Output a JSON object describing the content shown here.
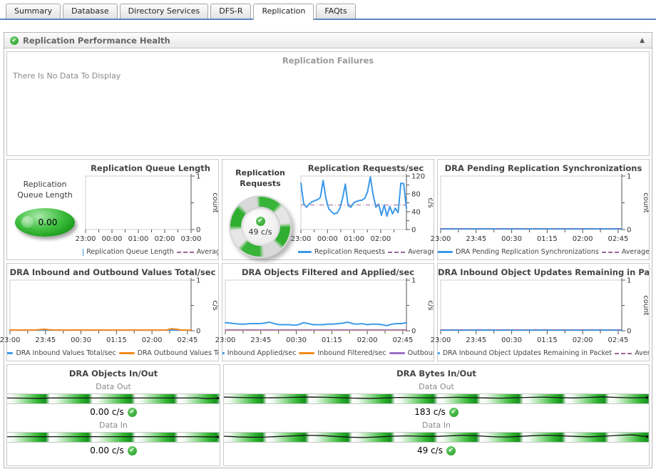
{
  "tabs": {
    "active": "Replication",
    "items": [
      "Summary",
      "Database",
      "Directory Services",
      "DFS-R",
      "Replication",
      "FAQts"
    ]
  },
  "section": {
    "title": "Replication Performance Health"
  },
  "glyphs": {
    "check": "✔",
    "collapse": "▲"
  },
  "colors": {
    "status_ok": "#2ca42c",
    "series_blue": "#3b99ea",
    "series_orange": "#f28a1f",
    "series_purple": "#9a6fc4",
    "average": "#996699",
    "tab_underline": "#5b86c2"
  },
  "no_data_panel": {
    "title": "Replication Failures",
    "message": "There Is No Data To Display"
  },
  "chart_data": [
    {
      "id": "replication-queue-length",
      "type": "line",
      "title": "Replication Queue Length",
      "xlabels": [
        "23:00",
        "00:00",
        "01:00",
        "02:00",
        "03:00"
      ],
      "xstep": 0.25,
      "ylim": [
        0,
        1
      ],
      "yticks": [
        0,
        1
      ],
      "ylabel": "count",
      "series": [],
      "legend": [
        {
          "swatch": "square",
          "color": "#3b99ea",
          "label": "Replication Queue Length"
        },
        {
          "swatch": "dash",
          "color": "#996699",
          "label": "Average"
        }
      ],
      "gauge": {
        "kind": "oval",
        "label": "Replication Queue Length",
        "value": "0.00"
      }
    },
    {
      "id": "replication-requests",
      "type": "line",
      "title": "Replication Requests/sec",
      "xlabels": [
        "23:00",
        "00:00",
        "01:00",
        "02:00"
      ],
      "xstep": 0.252,
      "ylim": [
        0,
        120
      ],
      "yticks": [
        0,
        40,
        80,
        120
      ],
      "ylabel": "c/s",
      "series": [
        {
          "name": "Replication Requests",
          "color": "#3b99ea",
          "width": 2,
          "values": [
            104,
            58,
            50,
            57,
            62,
            65,
            67,
            72,
            110,
            70,
            47,
            40,
            35,
            37,
            47,
            70,
            102,
            54,
            50,
            60,
            63,
            65,
            66,
            70,
            85,
            118,
            78,
            50,
            57,
            32,
            55,
            30,
            52,
            35,
            48,
            38,
            104,
            103,
            48
          ]
        }
      ],
      "average": 55,
      "legend": [
        {
          "swatch": "line",
          "color": "#3b99ea",
          "label": "Replication Requests"
        },
        {
          "swatch": "dash",
          "color": "#996699",
          "label": "Average"
        }
      ],
      "gauge": {
        "kind": "ring",
        "label": "Replication Requests",
        "value": "49 c/s"
      }
    },
    {
      "id": "dra-pending-sync",
      "type": "line",
      "title": "DRA Pending Replication Synchronizations",
      "xlabels": [
        "23:00",
        "23:45",
        "00:30",
        "01:15",
        "02:00",
        "02:45"
      ],
      "xstep": 0.196,
      "ylim": [
        0,
        1
      ],
      "yticks": [
        0,
        1
      ],
      "ylabel": "count",
      "series": [
        {
          "name": "DRA Pending Replication Synchronizations",
          "color": "#3b99ea",
          "width": 2,
          "values": [
            0.004,
            0.004,
            0.004,
            0.004,
            0.004,
            0.004,
            0.004,
            0.004
          ]
        }
      ],
      "average": 0,
      "legend": [
        {
          "swatch": "line",
          "color": "#3b99ea",
          "label": "DRA Pending Replication Synchronizations"
        },
        {
          "swatch": "dash",
          "color": "#996699",
          "label": "Average"
        }
      ]
    },
    {
      "id": "dra-values-total",
      "type": "line",
      "title": "DRA Inbound and Outbound Values Total/sec",
      "xlabels": [
        "23:00",
        "23:45",
        "00:30",
        "01:15",
        "02:00",
        "02:45"
      ],
      "xstep": 0.196,
      "ylim": [
        0,
        1
      ],
      "yticks": [
        0,
        1
      ],
      "ylabel": "c/s",
      "series": [
        {
          "name": "DRA Inbound Values Total/sec",
          "color": "#3b99ea",
          "width": 2,
          "values": [
            0.004,
            0.004,
            0.004,
            0.004,
            0.004,
            0.004,
            0.004,
            0.004,
            0.004,
            0.004
          ]
        },
        {
          "name": "DRA Outbound Values Total/sec",
          "color": "#f28a1f",
          "width": 2,
          "values": [
            0.005,
            0.005,
            0.005,
            0.005,
            0.005,
            0.008,
            0.022,
            0.03,
            0.02,
            0.008,
            0.005,
            0.005,
            0.005,
            0.005,
            0.005,
            0.005,
            0.005,
            0.005,
            0.005,
            0.005,
            0.005,
            0.005,
            0.005,
            0.005,
            0.005,
            0.005,
            0.005,
            0.005,
            0.005,
            0.005,
            0.005,
            0.005,
            0.008,
            0.04,
            0.03,
            0.008,
            0.005,
            0.005
          ]
        }
      ],
      "legend": [
        {
          "swatch": "line",
          "color": "#3b99ea",
          "label": "DRA Inbound Values Total/sec"
        },
        {
          "swatch": "line",
          "color": "#f28a1f",
          "label": "DRA Outbound Values Tota"
        }
      ]
    },
    {
      "id": "dra-filtered-applied",
      "type": "line",
      "title": "DRA Objects Filtered and Applied/sec",
      "xlabels": [
        "23:00",
        "23:45",
        "00:30",
        "01:15",
        "02:00",
        "02:45"
      ],
      "xstep": 0.196,
      "ylim": [
        0,
        1
      ],
      "yticks": [
        0,
        1
      ],
      "ylabel": "c/s",
      "series": [
        {
          "name": "Inbound Applied/sec",
          "color": "#3b99ea",
          "width": 2,
          "values": [
            0.16,
            0.15,
            0.14,
            0.13,
            0.13,
            0.14,
            0.14,
            0.14,
            0.15,
            0.17,
            0.14,
            0.12,
            0.12,
            0.12,
            0.11,
            0.12,
            0.16,
            0.14,
            0.12,
            0.12,
            0.12,
            0.13,
            0.13,
            0.14,
            0.15,
            0.17,
            0.14,
            0.13,
            0.14,
            0.12,
            0.13,
            0.13,
            0.12,
            0.1,
            0.13,
            0.14,
            0.14,
            0.16
          ]
        },
        {
          "name": "Inbound Filtered/sec",
          "color": "#f28a1f",
          "width": 1.5,
          "values": [
            0.008,
            0.008,
            0.008,
            0.008,
            0.008,
            0.008,
            0.008,
            0.008
          ]
        },
        {
          "name": "Outbound Filtered/sec",
          "color": "#9a6fc4",
          "width": 1.5,
          "values": [
            0.02,
            0.02,
            0.02,
            0.02,
            0.02,
            0.02,
            0.02,
            0.02
          ]
        }
      ],
      "legend": [
        {
          "swatch": "line",
          "color": "#3b99ea",
          "label": "Inbound Applied/sec"
        },
        {
          "swatch": "line",
          "color": "#f28a1f",
          "label": "Inbound Filtered/sec"
        },
        {
          "swatch": "line",
          "color": "#9a6fc4",
          "label": "Outbound F"
        }
      ]
    },
    {
      "id": "dra-updates-remaining",
      "type": "line",
      "title": "DRA Inbound Object Updates Remaining in Packet",
      "xlabels": [
        "23:00",
        "23:45",
        "00:30",
        "01:15",
        "02:00",
        "02:45"
      ],
      "xstep": 0.196,
      "ylim": [
        0,
        1
      ],
      "yticks": [
        0,
        1
      ],
      "ylabel": "count",
      "series": [
        {
          "name": "DRA Inbound Object Updates Remaining in Packet",
          "color": "#3b99ea",
          "width": 2,
          "values": [
            0.004,
            0.004,
            0.004,
            0.004,
            0.004,
            0.004,
            0.004,
            0.004
          ]
        }
      ],
      "average": 0,
      "legend": [
        {
          "swatch": "line",
          "color": "#3b99ea",
          "label": "DRA Inbound Object Updates Remaining in Packet"
        },
        {
          "swatch": "dash",
          "color": "#996699",
          "label": "Average"
        }
      ]
    }
  ],
  "flow_panels": [
    {
      "title": "DRA Objects In/Out",
      "rows": [
        {
          "label": "Data Out",
          "value": "0.00 c/s",
          "spark": [
            0.45,
            0.44,
            0.42,
            0.38,
            0.45,
            0.46,
            0.45,
            0.45,
            0.45,
            0.45,
            0.45,
            0.45,
            0.45,
            0.45,
            0.45,
            0.45,
            0.45,
            0.45,
            0.48,
            0.35,
            0.42
          ]
        },
        {
          "label": "Data In",
          "value": "0.00 c/s",
          "spark": [
            0.42,
            0.42,
            0.42,
            0.42,
            0.42,
            0.42,
            0.42,
            0.42,
            0.42,
            0.42,
            0.42,
            0.42,
            0.42,
            0.42,
            0.42,
            0.42,
            0.42,
            0.42,
            0.42,
            0.4,
            0.38
          ]
        }
      ]
    },
    {
      "title": "DRA Bytes In/Out",
      "rows": [
        {
          "label": "Data Out",
          "value": "183 c/s",
          "spark": [
            0.62,
            0.55,
            0.5,
            0.48,
            0.52,
            0.58,
            0.62,
            0.58,
            0.5,
            0.42,
            0.38,
            0.45,
            0.55,
            0.52,
            0.48,
            0.52,
            0.58,
            0.52,
            0.46,
            0.42,
            0.5,
            0.56,
            0.6,
            0.52,
            0.46,
            0.55,
            0.65,
            0.55,
            0.48,
            0.52
          ]
        },
        {
          "label": "Data In",
          "value": "49 c/s",
          "spark": [
            0.5,
            0.38,
            0.32,
            0.36,
            0.46,
            0.56,
            0.66,
            0.6,
            0.46,
            0.32,
            0.28,
            0.38,
            0.5,
            0.56,
            0.5,
            0.46,
            0.56,
            0.66,
            0.56,
            0.42,
            0.36,
            0.46,
            0.6,
            0.66,
            0.56,
            0.46,
            0.4,
            0.5,
            0.66,
            0.74,
            0.42
          ]
        }
      ]
    }
  ]
}
